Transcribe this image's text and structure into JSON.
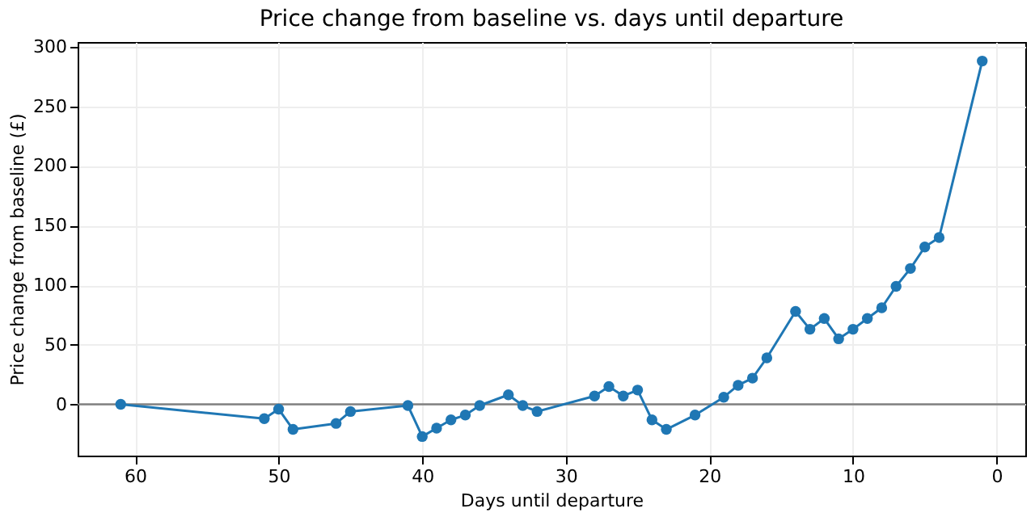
{
  "chart_data": {
    "type": "line",
    "title": "Price change from baseline vs. days until departure",
    "xlabel": "Days until departure",
    "ylabel": "Price change from baseline (£)",
    "x": [
      61,
      51,
      50,
      49,
      46,
      45,
      41,
      40,
      39,
      38,
      37,
      36,
      34,
      33,
      32,
      28,
      27,
      26,
      25,
      24,
      23,
      21,
      19,
      18,
      17,
      16,
      14,
      13,
      12,
      11,
      10,
      9,
      8,
      7,
      6,
      5,
      4,
      1
    ],
    "series": [
      {
        "color": "#1f77b4",
        "values": [
          0,
          -12,
          -4,
          -21,
          -16,
          -6,
          -1,
          -27,
          -20,
          -13,
          -9,
          -1,
          8,
          -1,
          -6,
          7,
          15,
          7,
          12,
          -13,
          -21,
          -9,
          6,
          16,
          22,
          39,
          78,
          63,
          72,
          55,
          63,
          72,
          81,
          99,
          114,
          132,
          140,
          288
        ]
      }
    ],
    "xlim": [
      64,
      -2
    ],
    "xticks": [
      60,
      50,
      40,
      30,
      20,
      10,
      0
    ],
    "ylim": [
      -43,
      304
    ],
    "yticks": [
      0,
      50,
      100,
      150,
      200,
      250,
      300
    ],
    "ref_lines": [
      {
        "axis": "y",
        "value": 0,
        "color": "#808080"
      }
    ],
    "grid": true,
    "marker": "circle",
    "line_style": "solid"
  }
}
